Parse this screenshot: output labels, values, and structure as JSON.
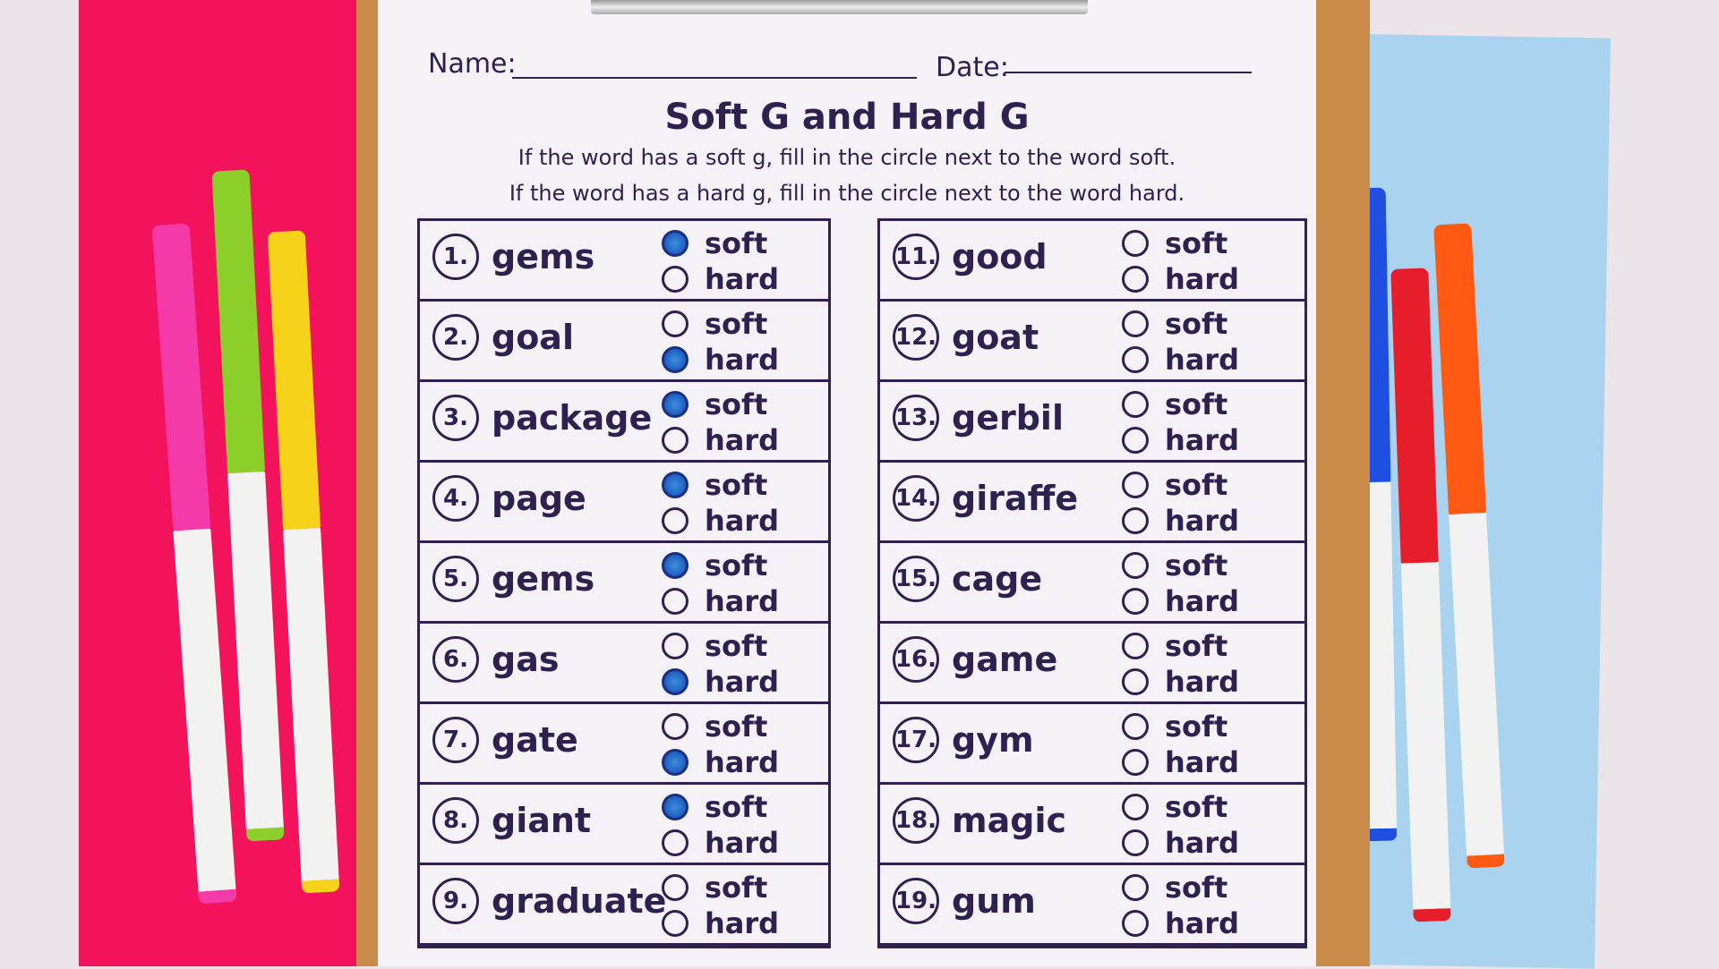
{
  "worksheet": {
    "name_label": "Name:",
    "date_label": "Date:",
    "title": "Soft G and Hard G",
    "instruction1": "If the word has a soft g, fill in the circle next to the word soft.",
    "instruction2": "If the word has a hard g, fill in the circle next to the word hard.",
    "option_soft": "soft",
    "option_hard": "hard",
    "left_items": [
      {
        "num": "1.",
        "word": "gems",
        "filled": "soft"
      },
      {
        "num": "2.",
        "word": "goal",
        "filled": "hard"
      },
      {
        "num": "3.",
        "word": "package",
        "filled": "soft"
      },
      {
        "num": "4.",
        "word": "page",
        "filled": "soft"
      },
      {
        "num": "5.",
        "word": "gems",
        "filled": "soft"
      },
      {
        "num": "6.",
        "word": "gas",
        "filled": "hard"
      },
      {
        "num": "7.",
        "word": "gate",
        "filled": "hard"
      },
      {
        "num": "8.",
        "word": "giant",
        "filled": "soft"
      },
      {
        "num": "9.",
        "word": "graduate",
        "filled": "none"
      }
    ],
    "right_items": [
      {
        "num": "11.",
        "word": "good",
        "filled": "none"
      },
      {
        "num": "12.",
        "word": "goat",
        "filled": "none"
      },
      {
        "num": "13.",
        "word": "gerbil",
        "filled": "none"
      },
      {
        "num": "14.",
        "word": "giraffe",
        "filled": "none"
      },
      {
        "num": "15.",
        "word": "cage",
        "filled": "none"
      },
      {
        "num": "16.",
        "word": "game",
        "filled": "none"
      },
      {
        "num": "17.",
        "word": "gym",
        "filled": "none"
      },
      {
        "num": "18.",
        "word": "magic",
        "filled": "none"
      },
      {
        "num": "19.",
        "word": "gum",
        "filled": "none"
      }
    ]
  },
  "colors": {
    "ink": "#2e2150",
    "fill": "#1349b0",
    "pink_paper": "#f3125c",
    "blue_paper": "#a9d3ef"
  },
  "markers_left": [
    {
      "cap": "#f43aa8"
    },
    {
      "cap": "#8ccf2a"
    },
    {
      "cap": "#f6d21a"
    }
  ],
  "markers_right": [
    {
      "cap": "#1e4fe0"
    },
    {
      "cap": "#e61e2c"
    },
    {
      "cap": "#ff5a14"
    }
  ]
}
